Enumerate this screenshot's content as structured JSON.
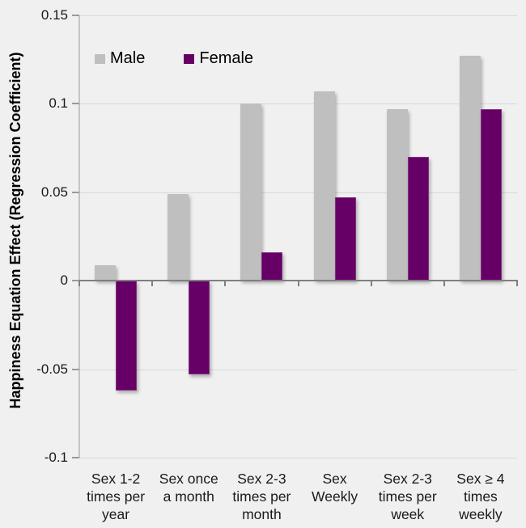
{
  "chart_data": {
    "type": "bar",
    "title": "",
    "xlabel": "",
    "ylabel": "Happiness Equation Effect (Regression Coefficient)",
    "ylim": [
      -0.1,
      0.15
    ],
    "yticks": [
      0.15,
      0.1,
      0.05,
      0,
      -0.05,
      -0.1
    ],
    "ytick_labels": [
      "0.15",
      "0.1",
      "0.05",
      "0",
      "-0.05",
      "-0.1"
    ],
    "grid": true,
    "legend_position": "top-left-inside",
    "categories": [
      "Sex 1-2 times per year",
      "Sex once a month",
      "Sex 2-3 times per month",
      "Sex Weekly",
      "Sex 2-3 times per week",
      "Sex ≥ 4 times weekly"
    ],
    "category_label_lines": [
      [
        "Sex 1-2",
        "times per",
        "year"
      ],
      [
        "Sex once",
        "a month"
      ],
      [
        "Sex 2-3",
        "times per",
        "month"
      ],
      [
        "Sex",
        "Weekly"
      ],
      [
        "Sex 2-3",
        "times per",
        "week"
      ],
      [
        "Sex ≥ 4",
        "times",
        "weekly"
      ]
    ],
    "series": [
      {
        "name": "Male",
        "color": "#bfbfbf",
        "values": [
          0.009,
          0.049,
          0.1,
          0.107,
          0.097,
          0.127
        ]
      },
      {
        "name": "Female",
        "color": "#660066",
        "values": [
          -0.062,
          -0.053,
          0.016,
          0.047,
          0.07,
          0.097
        ]
      }
    ],
    "style_colors": {
      "background": "#f0f0f0",
      "gridline": "#d8d8d8",
      "zero_line": "#808080",
      "axis_line": "#c4c4c4",
      "tick": "#9a9a9a",
      "text": "#1a1a1a"
    }
  }
}
